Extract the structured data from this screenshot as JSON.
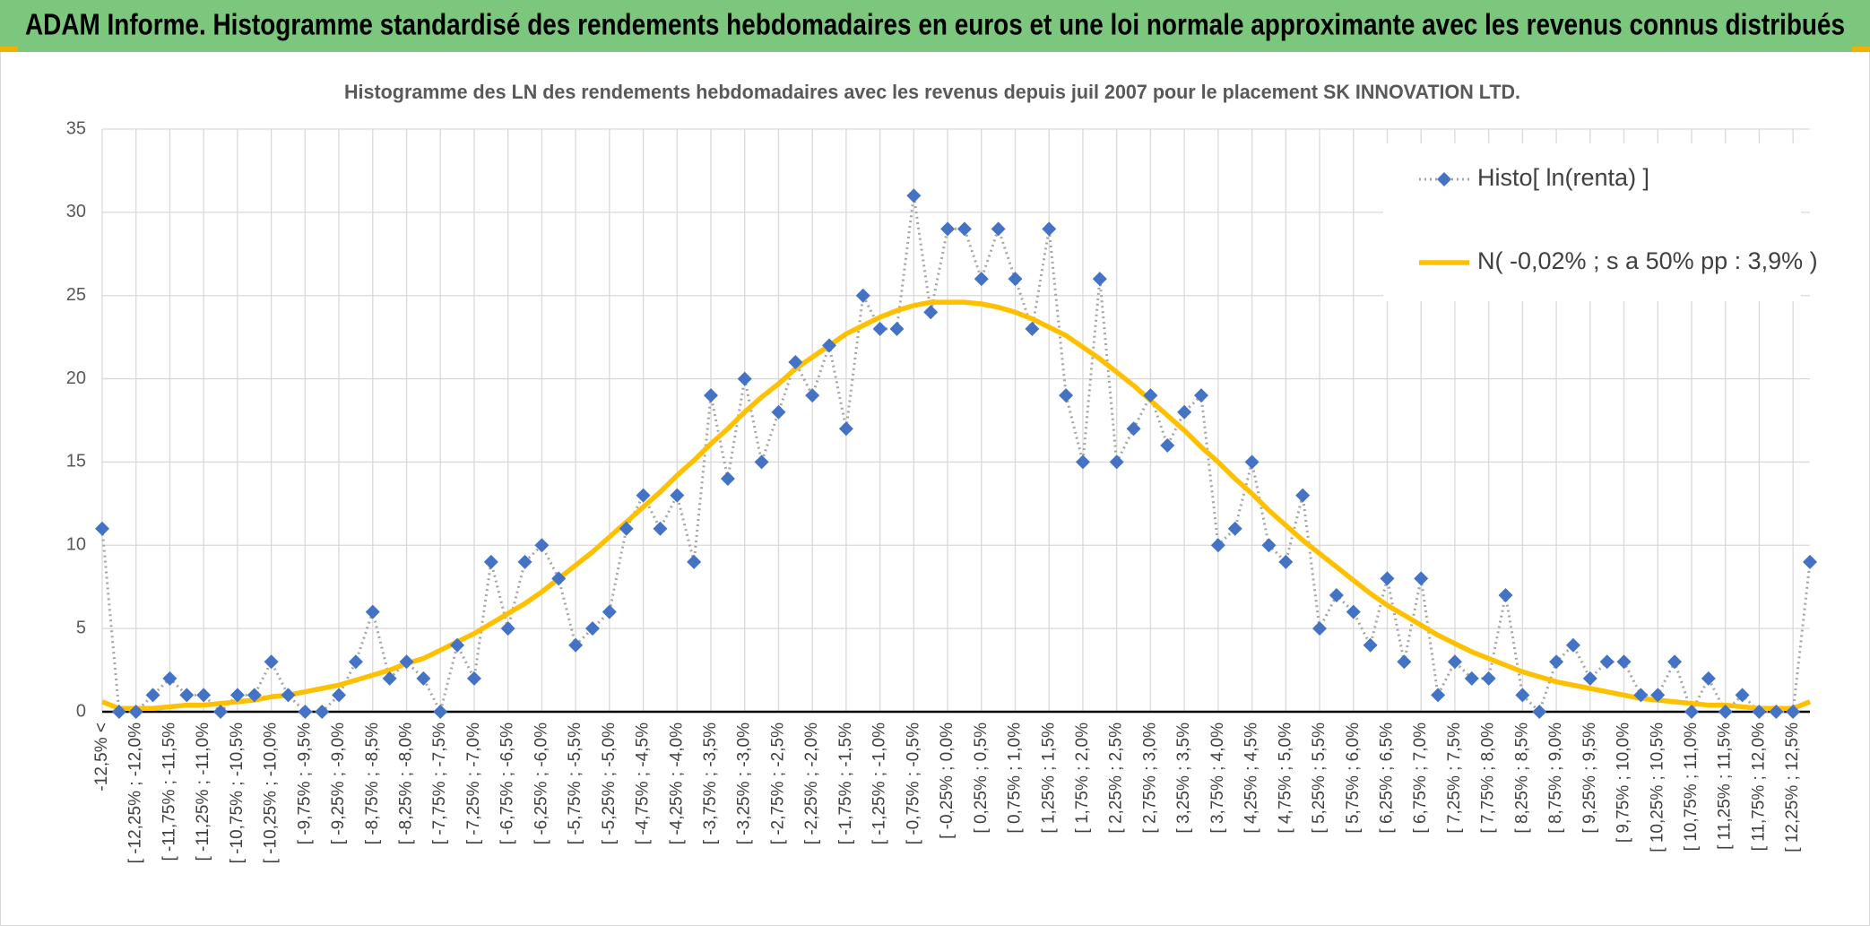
{
  "chart_data": {
    "type": "line",
    "header": "ADAM Informe. Histogramme standardisé des rendements hebdomadaires en euros et une loi normale approximante avec les revenus connus distribués",
    "title": "Histogramme des LN des rendements hebdomadaires avec les revenus depuis juil 2007 pour le placement SK INNOVATION LTD.",
    "categories": [
      "-12,5% <",
      null,
      "[ -12,25% ; -12,0%",
      null,
      "[ -11,75% ; -11,5%",
      null,
      "[ -11,25% ; -11,0%",
      null,
      "[ -10,75% ; -10,5%",
      null,
      "[ -10,25% ; -10,0%",
      null,
      "[ -9,75% ; -9,5%",
      null,
      "[ -9,25% ; -9,0%",
      null,
      "[ -8,75% ; -8,5%",
      null,
      "[ -8,25% ; -8,0%",
      null,
      "[ -7,75% ; -7,5%",
      null,
      "[ -7,25% ; -7,0%",
      null,
      "[ -6,75% ; -6,5%",
      null,
      "[ -6,25% ; -6,0%",
      null,
      "[ -5,75% ; -5,5%",
      null,
      "[ -5,25% ; -5,0%",
      null,
      "[ -4,75% ; -4,5%",
      null,
      "[ -4,25% ; -4,0%",
      null,
      "[ -3,75% ; -3,5%",
      null,
      "[ -3,25% ; -3,0%",
      null,
      "[ -2,75% ; -2,5%",
      null,
      "[ -2,25% ; -2,0%",
      null,
      "[ -1,75% ; -1,5%",
      null,
      "[ -1,25% ; -1,0%",
      null,
      "[ -0,75% ; -0,5%",
      null,
      "[ -0,25% ; 0,0%",
      null,
      "[ 0,25% ; 0,5%",
      null,
      "[ 0,75% ; 1,0%",
      null,
      "[ 1,25% ; 1,5%",
      null,
      "[ 1,75% ; 2,0%",
      null,
      "[ 2,25% ; 2,5%",
      null,
      "[ 2,75% ; 3,0%",
      null,
      "[ 3,25% ; 3,5%",
      null,
      "[ 3,75% ; 4,0%",
      null,
      "[ 4,25% ; 4,5%",
      null,
      "[ 4,75% ; 5,0%",
      null,
      "[ 5,25% ; 5,5%",
      null,
      "[ 5,75% ; 6,0%",
      null,
      "[ 6,25% ; 6,5%",
      null,
      "[ 6,75% ; 7,0%",
      null,
      "[ 7,25% ; 7,5%",
      null,
      "[ 7,75% ; 8,0%",
      null,
      "[ 8,25% ; 8,5%",
      null,
      "[ 8,75% ; 9,0%",
      null,
      "[ 9,25% ; 9,5%",
      null,
      "[ 9,75% ; 10,0%",
      null,
      "[ 10,25% ; 10,5%",
      null,
      "[ 10,75% ; 11,0%",
      null,
      "[ 11,25% ; 11,5%",
      null,
      "[ 11,75% ; 12,0%",
      null,
      "[ 12,25% ; 12,5%",
      null
    ],
    "series": [
      {
        "name": "Histo[ ln(renta) ]",
        "color": "#4472c4",
        "line_color": "#a6a6a6",
        "values": [
          11,
          0,
          0,
          1,
          2,
          1,
          1,
          0,
          1,
          1,
          3,
          1,
          0,
          0,
          1,
          3,
          6,
          2,
          3,
          2,
          0,
          4,
          2,
          9,
          5,
          9,
          10,
          8,
          4,
          5,
          6,
          11,
          13,
          11,
          13,
          9,
          19,
          14,
          20,
          15,
          18,
          21,
          19,
          22,
          17,
          25,
          23,
          23,
          31,
          24,
          29,
          29,
          26,
          29,
          26,
          23,
          29,
          19,
          15,
          26,
          15,
          17,
          19,
          16,
          18,
          19,
          10,
          11,
          15,
          10,
          9,
          13,
          5,
          7,
          6,
          4,
          8,
          3,
          8,
          1,
          3,
          2,
          2,
          7,
          1,
          0,
          3,
          4,
          2,
          3,
          3,
          1,
          1,
          3,
          0,
          2,
          0,
          1,
          0,
          0,
          0,
          9
        ]
      },
      {
        "name": "N( -0,02% ; s a 50% pp : 3,9% )",
        "color": "#ffc000",
        "values": [
          0.6,
          0.2,
          0.2,
          0.2,
          0.3,
          0.4,
          0.4,
          0.5,
          0.6,
          0.7,
          0.9,
          1.0,
          1.2,
          1.4,
          1.6,
          1.9,
          2.2,
          2.5,
          2.9,
          3.2,
          3.7,
          4.2,
          4.7,
          5.3,
          5.9,
          6.5,
          7.2,
          8.0,
          8.8,
          9.6,
          10.5,
          11.4,
          12.3,
          13.2,
          14.2,
          15.1,
          16.1,
          17.0,
          18.0,
          18.9,
          19.7,
          20.6,
          21.3,
          22.0,
          22.7,
          23.2,
          23.7,
          24.1,
          24.4,
          24.6,
          24.6,
          24.6,
          24.5,
          24.3,
          24.0,
          23.6,
          23.1,
          22.6,
          21.9,
          21.2,
          20.4,
          19.6,
          18.7,
          17.8,
          16.9,
          15.9,
          15.0,
          14.0,
          13.1,
          12.1,
          11.2,
          10.3,
          9.5,
          8.7,
          7.9,
          7.1,
          6.4,
          5.8,
          5.2,
          4.6,
          4.1,
          3.6,
          3.2,
          2.8,
          2.4,
          2.1,
          1.8,
          1.6,
          1.4,
          1.2,
          1.0,
          0.8,
          0.7,
          0.6,
          0.5,
          0.4,
          0.4,
          0.3,
          0.2,
          0.2,
          0.2,
          0.6
        ]
      }
    ],
    "ylim": [
      0,
      35
    ],
    "yticks": [
      0,
      5,
      10,
      15,
      20,
      25,
      30,
      35
    ],
    "grid": true,
    "legend": "top-right"
  }
}
